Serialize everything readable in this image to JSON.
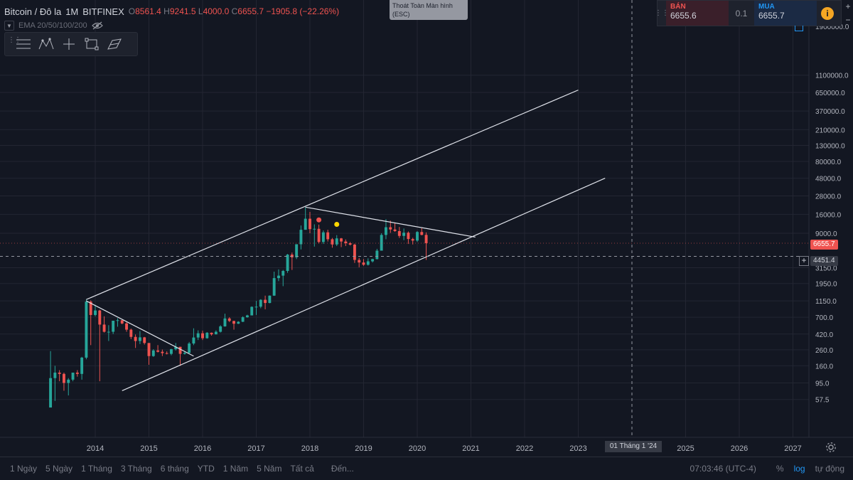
{
  "header": {
    "symbol": "Bitcoin / Đô la",
    "interval": "1M",
    "exchange": "BITFINEX",
    "open_label": "O",
    "open": "8561.4",
    "high_label": "H",
    "high": "9241.5",
    "low_label": "L",
    "low": "4000.0",
    "close_label": "C",
    "close": "6655.7",
    "change": "−1905.8 (−22.26%)"
  },
  "indicator": {
    "label": "EMA 20/50/100/200"
  },
  "drawing_toolbar": {
    "tools": [
      "lines-icon",
      "pattern-icon",
      "crosshair-icon",
      "rectangle-icon",
      "brush-icon"
    ]
  },
  "fullscreen_tip": {
    "line1": "Thoát Toàn Màn hình",
    "line2": "(ESC)"
  },
  "trade_panel": {
    "sell_label": "BÁN",
    "sell_price": "6655.6",
    "quantity": "0.1",
    "buy_label": "MUA",
    "buy_price": "6655.7"
  },
  "price_axis": {
    "labels": [
      "1100000.0",
      "650000.0",
      "370000.0",
      "210000.0",
      "130000.0",
      "80000.0",
      "48000.0",
      "28000.0",
      "16000.0",
      "9000.0",
      "3150.0",
      "1950.0",
      "1150.0",
      "700.0",
      "420.0",
      "260.0",
      "160.0",
      "95.0",
      "57.5"
    ],
    "top_partial": "1900000.0",
    "last_price": "6655.7",
    "crosshair_price": "4451.4",
    "scale": "log"
  },
  "time_axis": {
    "labels": [
      "2014",
      "2015",
      "2016",
      "2017",
      "2018",
      "2019",
      "2020",
      "2021",
      "2022",
      "2023",
      "2025",
      "2026",
      "2027"
    ],
    "crosshair_date": "01 Tháng 1 '24"
  },
  "chart_data": {
    "type": "candlestick",
    "scale": "log",
    "x_unit": "month",
    "candles": [
      {
        "t": "2013-03",
        "o": 45,
        "h": 250,
        "l": 45,
        "c": 110
      },
      {
        "t": "2013-04",
        "o": 110,
        "h": 160,
        "l": 55,
        "c": 130
      },
      {
        "t": "2013-05",
        "o": 130,
        "h": 140,
        "l": 100,
        "c": 125
      },
      {
        "t": "2013-06",
        "o": 125,
        "h": 130,
        "l": 75,
        "c": 95
      },
      {
        "t": "2013-07",
        "o": 95,
        "h": 110,
        "l": 65,
        "c": 105
      },
      {
        "t": "2013-08",
        "o": 105,
        "h": 130,
        "l": 100,
        "c": 130
      },
      {
        "t": "2013-09",
        "o": 130,
        "h": 140,
        "l": 115,
        "c": 125
      },
      {
        "t": "2013-10",
        "o": 125,
        "h": 210,
        "l": 105,
        "c": 205
      },
      {
        "t": "2013-11",
        "o": 205,
        "h": 1200,
        "l": 195,
        "c": 1125
      },
      {
        "t": "2013-12",
        "o": 1125,
        "h": 1170,
        "l": 300,
        "c": 750
      },
      {
        "t": "2014-01",
        "o": 750,
        "h": 1020,
        "l": 720,
        "c": 860
      },
      {
        "t": "2014-02",
        "o": 860,
        "h": 880,
        "l": 100,
        "c": 560
      },
      {
        "t": "2014-03",
        "o": 560,
        "h": 720,
        "l": 440,
        "c": 450
      },
      {
        "t": "2014-04",
        "o": 450,
        "h": 550,
        "l": 340,
        "c": 450
      },
      {
        "t": "2014-05",
        "o": 450,
        "h": 630,
        "l": 420,
        "c": 630
      },
      {
        "t": "2014-06",
        "o": 630,
        "h": 680,
        "l": 525,
        "c": 640
      },
      {
        "t": "2014-07",
        "o": 640,
        "h": 640,
        "l": 565,
        "c": 580
      },
      {
        "t": "2014-08",
        "o": 580,
        "h": 600,
        "l": 450,
        "c": 480
      },
      {
        "t": "2014-09",
        "o": 480,
        "h": 495,
        "l": 360,
        "c": 385
      },
      {
        "t": "2014-10",
        "o": 385,
        "h": 415,
        "l": 275,
        "c": 340
      },
      {
        "t": "2014-11",
        "o": 340,
        "h": 460,
        "l": 310,
        "c": 380
      },
      {
        "t": "2014-12",
        "o": 380,
        "h": 385,
        "l": 305,
        "c": 320
      },
      {
        "t": "2015-01",
        "o": 320,
        "h": 320,
        "l": 165,
        "c": 215
      },
      {
        "t": "2015-02",
        "o": 215,
        "h": 265,
        "l": 210,
        "c": 255
      },
      {
        "t": "2015-03",
        "o": 255,
        "h": 300,
        "l": 240,
        "c": 245
      },
      {
        "t": "2015-04",
        "o": 245,
        "h": 262,
        "l": 215,
        "c": 235
      },
      {
        "t": "2015-05",
        "o": 235,
        "h": 248,
        "l": 226,
        "c": 230
      },
      {
        "t": "2015-06",
        "o": 230,
        "h": 268,
        "l": 220,
        "c": 265
      },
      {
        "t": "2015-07",
        "o": 265,
        "h": 320,
        "l": 255,
        "c": 285
      },
      {
        "t": "2015-08",
        "o": 285,
        "h": 285,
        "l": 160,
        "c": 230
      },
      {
        "t": "2015-09",
        "o": 230,
        "h": 245,
        "l": 225,
        "c": 237
      },
      {
        "t": "2015-10",
        "o": 237,
        "h": 330,
        "l": 235,
        "c": 315
      },
      {
        "t": "2015-11",
        "o": 315,
        "h": 500,
        "l": 300,
        "c": 378
      },
      {
        "t": "2015-12",
        "o": 378,
        "h": 470,
        "l": 350,
        "c": 430
      },
      {
        "t": "2016-01",
        "o": 430,
        "h": 465,
        "l": 350,
        "c": 370
      },
      {
        "t": "2016-02",
        "o": 370,
        "h": 445,
        "l": 365,
        "c": 437
      },
      {
        "t": "2016-03",
        "o": 437,
        "h": 440,
        "l": 400,
        "c": 416
      },
      {
        "t": "2016-04",
        "o": 416,
        "h": 470,
        "l": 415,
        "c": 450
      },
      {
        "t": "2016-05",
        "o": 450,
        "h": 550,
        "l": 440,
        "c": 530
      },
      {
        "t": "2016-06",
        "o": 530,
        "h": 780,
        "l": 525,
        "c": 675
      },
      {
        "t": "2016-07",
        "o": 675,
        "h": 700,
        "l": 605,
        "c": 625
      },
      {
        "t": "2016-08",
        "o": 625,
        "h": 630,
        "l": 480,
        "c": 575
      },
      {
        "t": "2016-09",
        "o": 575,
        "h": 620,
        "l": 570,
        "c": 610
      },
      {
        "t": "2016-10",
        "o": 610,
        "h": 720,
        "l": 605,
        "c": 700
      },
      {
        "t": "2016-11",
        "o": 700,
        "h": 755,
        "l": 690,
        "c": 740
      },
      {
        "t": "2016-12",
        "o": 740,
        "h": 975,
        "l": 740,
        "c": 960
      },
      {
        "t": "2017-01",
        "o": 960,
        "h": 1150,
        "l": 750,
        "c": 965
      },
      {
        "t": "2017-02",
        "o": 965,
        "h": 1210,
        "l": 920,
        "c": 1190
      },
      {
        "t": "2017-03",
        "o": 1190,
        "h": 1350,
        "l": 890,
        "c": 1080
      },
      {
        "t": "2017-04",
        "o": 1080,
        "h": 1360,
        "l": 1070,
        "c": 1350
      },
      {
        "t": "2017-05",
        "o": 1350,
        "h": 2800,
        "l": 1340,
        "c": 2300
      },
      {
        "t": "2017-06",
        "o": 2300,
        "h": 3000,
        "l": 2100,
        "c": 2480
      },
      {
        "t": "2017-07",
        "o": 2480,
        "h": 2950,
        "l": 1800,
        "c": 2860
      },
      {
        "t": "2017-08",
        "o": 2860,
        "h": 4800,
        "l": 2700,
        "c": 4700
      },
      {
        "t": "2017-09",
        "o": 4700,
        "h": 5000,
        "l": 2950,
        "c": 4330
      },
      {
        "t": "2017-10",
        "o": 4330,
        "h": 6450,
        "l": 4100,
        "c": 6440
      },
      {
        "t": "2017-11",
        "o": 6440,
        "h": 11400,
        "l": 5500,
        "c": 10000
      },
      {
        "t": "2017-12",
        "o": 10000,
        "h": 19900,
        "l": 10000,
        "c": 14000
      },
      {
        "t": "2018-01",
        "o": 14000,
        "h": 17200,
        "l": 9000,
        "c": 10200
      },
      {
        "t": "2018-02",
        "o": 10200,
        "h": 11800,
        "l": 6000,
        "c": 10300
      },
      {
        "t": "2018-03",
        "o": 10300,
        "h": 11700,
        "l": 6600,
        "c": 6900
      },
      {
        "t": "2018-04",
        "o": 6900,
        "h": 9800,
        "l": 6500,
        "c": 9250
      },
      {
        "t": "2018-05",
        "o": 9250,
        "h": 10000,
        "l": 7000,
        "c": 7500
      },
      {
        "t": "2018-06",
        "o": 7500,
        "h": 7800,
        "l": 5800,
        "c": 6400
      },
      {
        "t": "2018-07",
        "o": 6400,
        "h": 8500,
        "l": 6100,
        "c": 7700
      },
      {
        "t": "2018-08",
        "o": 7700,
        "h": 7800,
        "l": 5900,
        "c": 7000
      },
      {
        "t": "2018-09",
        "o": 7000,
        "h": 7450,
        "l": 6100,
        "c": 6650
      },
      {
        "t": "2018-10",
        "o": 6650,
        "h": 6900,
        "l": 6200,
        "c": 6370
      },
      {
        "t": "2018-11",
        "o": 6370,
        "h": 6560,
        "l": 3650,
        "c": 4000
      },
      {
        "t": "2018-12",
        "o": 4000,
        "h": 4250,
        "l": 3200,
        "c": 3700
      },
      {
        "t": "2019-01",
        "o": 3700,
        "h": 4100,
        "l": 3350,
        "c": 3450
      },
      {
        "t": "2019-02",
        "o": 3450,
        "h": 4200,
        "l": 3370,
        "c": 3830
      },
      {
        "t": "2019-03",
        "o": 3830,
        "h": 4150,
        "l": 3700,
        "c": 4100
      },
      {
        "t": "2019-04",
        "o": 4100,
        "h": 5600,
        "l": 4060,
        "c": 5300
      },
      {
        "t": "2019-05",
        "o": 5300,
        "h": 9000,
        "l": 5300,
        "c": 8550
      },
      {
        "t": "2019-06",
        "o": 8550,
        "h": 13800,
        "l": 7500,
        "c": 10800
      },
      {
        "t": "2019-07",
        "o": 10800,
        "h": 13200,
        "l": 9100,
        "c": 10100
      },
      {
        "t": "2019-08",
        "o": 10100,
        "h": 12300,
        "l": 9400,
        "c": 9600
      },
      {
        "t": "2019-09",
        "o": 9600,
        "h": 10900,
        "l": 7800,
        "c": 8300
      },
      {
        "t": "2019-10",
        "o": 8300,
        "h": 10400,
        "l": 7300,
        "c": 9150
      },
      {
        "t": "2019-11",
        "o": 9150,
        "h": 9500,
        "l": 6500,
        "c": 7550
      },
      {
        "t": "2019-12",
        "o": 7550,
        "h": 7850,
        "l": 6400,
        "c": 7200
      },
      {
        "t": "2020-01",
        "o": 7200,
        "h": 9600,
        "l": 6900,
        "c": 9350
      },
      {
        "t": "2020-02",
        "o": 9350,
        "h": 10500,
        "l": 8450,
        "c": 8561.4
      },
      {
        "t": "2020-03",
        "o": 8561.4,
        "h": 9241.5,
        "l": 4000.0,
        "c": 6655.7
      }
    ],
    "drawings": [
      {
        "name": "upper-channel-line",
        "p1": {
          "t": "2013-11",
          "v": 1200
        },
        "p2": {
          "t": "2023-01",
          "v": 700000
        }
      },
      {
        "name": "lower-channel-line",
        "p1": {
          "t": "2014-07",
          "v": 75
        },
        "p2": {
          "t": "2023-07",
          "v": 48000
        }
      },
      {
        "name": "peak-resistance-line",
        "p1": {
          "t": "2017-12",
          "v": 19900
        },
        "p2": {
          "t": "2021-02",
          "v": 8000
        }
      },
      {
        "name": "bear-2014-trend-line",
        "p1": {
          "t": "2013-11",
          "v": 1150
        },
        "p2": {
          "t": "2015-11",
          "v": 215
        }
      },
      {
        "name": "crosshair-vertical",
        "t": "2024-01"
      },
      {
        "name": "crosshair-horizontal",
        "v": 4451.4
      }
    ],
    "markers": [
      {
        "name": "dividend-dot",
        "t": "2018-03",
        "v": 13500,
        "color": "#ef5350"
      },
      {
        "name": "event-dot",
        "t": "2018-07",
        "v": 11800,
        "color": "#ffd700"
      }
    ]
  },
  "bottom_bar": {
    "periods": [
      "1 Ngày",
      "5 Ngày",
      "1 Tháng",
      "3 Tháng",
      "6 tháng",
      "YTD",
      "1 Năm",
      "5 Năm",
      "Tất cả"
    ],
    "goto": "Đến...",
    "time": "07:03:46 (UTC-4)",
    "percent": "%",
    "log": "log",
    "auto": "tự động"
  },
  "colors": {
    "up": "#26a69a",
    "down": "#ef5350",
    "background": "#131722",
    "grid": "#232632",
    "drawing": "#e0e3eb"
  }
}
